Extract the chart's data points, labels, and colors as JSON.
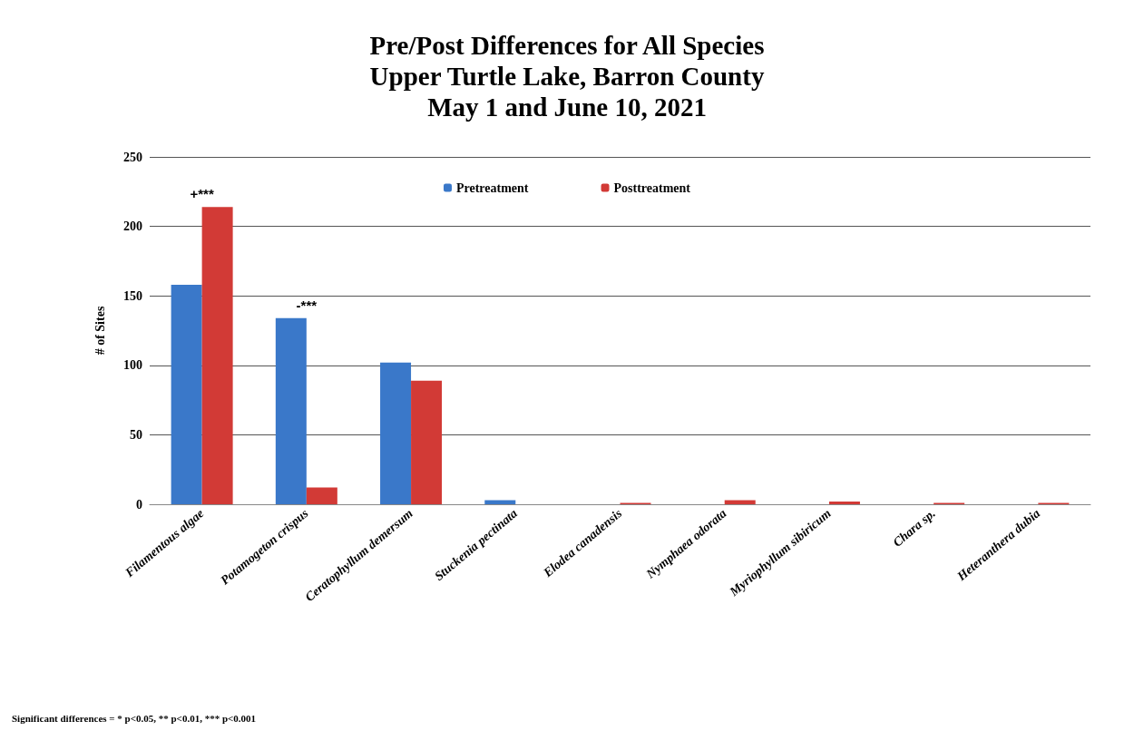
{
  "chart_data": {
    "type": "bar",
    "title": "Pre/Post Differences for All Species\nUpper Turtle Lake, Barron County\nMay 1 and June 10, 2021",
    "ylabel": "# of Sites",
    "categories": [
      "Filamentous algae",
      "Potamogeton crispus",
      "Ceratophyllum demersum",
      "Stuckenia pectinata",
      "Elodea canadensis",
      "Nymphaea odorata",
      "Myriophyllum sibiricum",
      "Chara sp.",
      "Heteranthera dubia"
    ],
    "series": [
      {
        "name": "Pretreatment",
        "color": "#3a78c9",
        "values": [
          158,
          134,
          102,
          3,
          0,
          0,
          0,
          0,
          0
        ]
      },
      {
        "name": "Posttreatment",
        "color": "#d23a36",
        "values": [
          214,
          12,
          89,
          0,
          1,
          3,
          2,
          1,
          1
        ]
      }
    ],
    "ylim": [
      0,
      250
    ],
    "yticks": [
      0,
      50,
      100,
      150,
      200,
      250
    ],
    "grid": "y",
    "legend": "top",
    "annotations": [
      {
        "text": "+***",
        "x": "Filamentous algae",
        "y": 214
      },
      {
        "text": "-***",
        "x": "Potamogeton crispus",
        "y": 134
      },
      "Significant differences = * p<0.05, ** p<0.01, *** p<0.001"
    ]
  }
}
